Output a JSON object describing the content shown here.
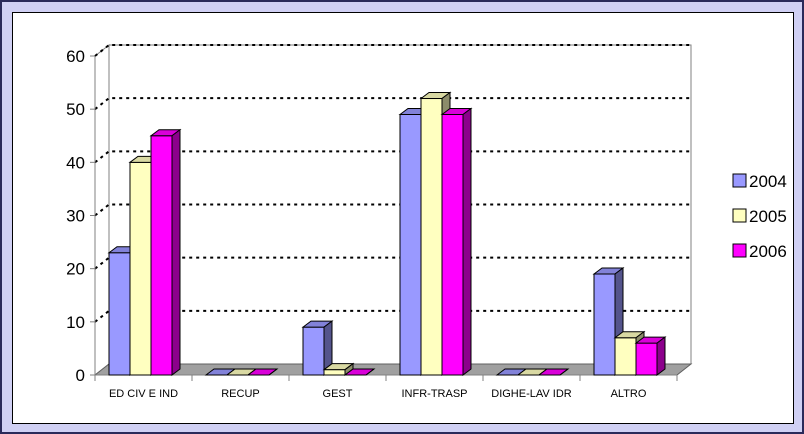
{
  "chart_data": {
    "type": "bar",
    "title": "",
    "xlabel": "",
    "ylabel": "",
    "ylim": [
      0,
      60
    ],
    "yticks": [
      0,
      10,
      20,
      30,
      40,
      50,
      60
    ],
    "categories": [
      "ED CIV E IND",
      "RECUP",
      "GEST",
      "INFR-TRASP",
      "DIGHE-LAV IDR",
      "ALTRO"
    ],
    "series": [
      {
        "name": "2004",
        "color": "#9999ff",
        "values": [
          23,
          0,
          9,
          49,
          0,
          19
        ]
      },
      {
        "name": "2005",
        "color": "#ffffc0",
        "values": [
          40,
          0,
          1,
          52,
          0,
          7
        ]
      },
      {
        "name": "2006",
        "color": "#ff00ff",
        "values": [
          45,
          0,
          0,
          49,
          0,
          6
        ]
      }
    ],
    "grid": true,
    "legend_position": "right",
    "three_d": true
  }
}
